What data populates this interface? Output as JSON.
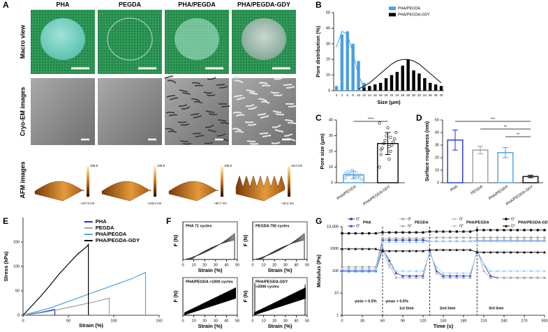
{
  "figure": {
    "panel_labels": [
      "A",
      "B",
      "C",
      "D",
      "E",
      "F",
      "G"
    ]
  },
  "images": {
    "columns": [
      "PHA",
      "PEGDA",
      "PHA/PEGDA",
      "PHA/PEGDA-GDY"
    ],
    "rows": [
      "Macro view",
      "Cryo-EM images",
      "AFM images"
    ],
    "afm_scales": [
      [
        "108.5 nm",
        "−137.6 nm"
      ],
      [
        "108.5 nm",
        "−133.0 nm"
      ],
      [
        "108.5 nm",
        "−90.7 nm"
      ],
      [
        "19.0 nm",
        "−15.4 nm"
      ]
    ]
  },
  "chart_data": [
    {
      "type": "bar",
      "ylabel": "Pore distribution (%)",
      "xlabel": "Size (μm)",
      "categories": [
        "2",
        "4",
        "6",
        "8",
        "10",
        "12",
        "14",
        "16",
        "18",
        "20",
        "22",
        "24",
        "26",
        "28",
        "30",
        "32",
        "34",
        "36",
        "38",
        "40"
      ],
      "ylim": [
        0,
        50
      ],
      "yticks": [
        0,
        10,
        20,
        30,
        40,
        50
      ],
      "legend": "upper right",
      "series": [
        {
          "name": "PHA/PEGDA",
          "color": "#4a9fe3",
          "values": [
            3,
            36,
            38,
            30,
            19,
            5,
            0,
            0,
            0,
            0,
            0,
            0,
            0,
            0,
            0,
            0,
            0,
            0,
            0,
            0
          ],
          "fit": [
            28,
            38,
            36,
            24,
            10,
            2,
            null,
            null,
            null,
            null,
            null,
            null,
            null,
            null,
            null,
            null,
            null,
            null,
            null,
            null
          ]
        },
        {
          "name": "PHA/PEGDA-GDY",
          "color": "#000000",
          "values": [
            0,
            0,
            0,
            0,
            0,
            2,
            3,
            4,
            5,
            8,
            10,
            12,
            16,
            20,
            13,
            11,
            8,
            5,
            4,
            3
          ],
          "fit": [
            null,
            null,
            null,
            null,
            1,
            3,
            5,
            8,
            11,
            14,
            17,
            19,
            20,
            20,
            19,
            17,
            14,
            11,
            8,
            5
          ]
        }
      ]
    },
    {
      "type": "column",
      "ylabel": "Pore size (μm)",
      "categories": [
        "PHA/PEGDA",
        "PHA/PEGDA-GDY"
      ],
      "colors": [
        "#4a9fe3",
        "#000000"
      ],
      "values": [
        5,
        25
      ],
      "errors": [
        2.5,
        7
      ],
      "points": [
        [
          3,
          4,
          5,
          6,
          7,
          4,
          5,
          3,
          6,
          5,
          8,
          2,
          4,
          6
        ],
        [
          10,
          15,
          18,
          20,
          22,
          24,
          25,
          26,
          27,
          28,
          30,
          32,
          35,
          38,
          23,
          21,
          29
        ]
      ],
      "ylim": [
        0,
        40
      ],
      "yticks": [
        0,
        10,
        20,
        30,
        40
      ],
      "annotations": [
        "****"
      ]
    },
    {
      "type": "column",
      "ylabel": "Surface roughness (nm)",
      "categories": [
        "PHA",
        "PEGDA",
        "PHA/PEGDA",
        "PHA/PEGDA-GDY"
      ],
      "colors": [
        "#1c2fd6",
        "#9a9a9a",
        "#4a9fe3",
        "#000000"
      ],
      "values": [
        34,
        26,
        24,
        5
      ],
      "errors": [
        8,
        3,
        4,
        1
      ],
      "ylim": [
        0,
        50
      ],
      "yticks": [
        0,
        10,
        20,
        30,
        40,
        50
      ],
      "annotations": [
        "***",
        "**",
        "**"
      ]
    },
    {
      "type": "line",
      "ylabel": "Stress (kPa)",
      "xlabel": "Strain (%)",
      "ylim": [
        0,
        200
      ],
      "yticks": [
        0,
        50,
        100,
        150
      ],
      "xlim": [
        0,
        150
      ],
      "xticks": [
        0,
        50,
        100,
        150
      ],
      "legend": "upper right",
      "series": [
        {
          "name": "PHA",
          "color": "#1c2fd6",
          "x": [
            0,
            10,
            20,
            30,
            35,
            35
          ],
          "values": [
            0,
            3,
            6,
            10,
            12,
            0
          ]
        },
        {
          "name": "PEGDA",
          "color": "#a0a0a0",
          "x": [
            0,
            20,
            40,
            60,
            80,
            95,
            95
          ],
          "values": [
            0,
            5,
            12,
            20,
            28,
            35,
            0
          ]
        },
        {
          "name": "PHA/PEGDA",
          "color": "#4fa7e6",
          "x": [
            0,
            30,
            60,
            90,
            120,
            135,
            135
          ],
          "values": [
            0,
            15,
            35,
            55,
            75,
            88,
            0
          ]
        },
        {
          "name": "PHA/PEGDA-GDY",
          "color": "#000000",
          "x": [
            0,
            10,
            20,
            30,
            40,
            50,
            60,
            70,
            72,
            72
          ],
          "values": [
            0,
            20,
            40,
            62,
            85,
            105,
            125,
            140,
            145,
            0
          ]
        }
      ]
    },
    {
      "type": "loops",
      "xlabel": "Strain (%)",
      "ylabel": "F (N)",
      "xlim": [
        0,
        50
      ],
      "xticks": [
        0,
        10,
        20,
        30,
        40,
        50
      ],
      "panels": [
        {
          "title": [
            "PHA  71 cycles"
          ],
          "color": "#1c2fd6"
        },
        {
          "title": [
            "PEGDA  792 cycles"
          ],
          "color": "#8a8a8a"
        },
        {
          "title": [
            "PHA/PEGDA >1000 cycles"
          ],
          "color": "#4fa7e6"
        },
        {
          "title": [
            "PHA/PEGDA-GDY",
            ">2000 cycles"
          ],
          "color": "#000000"
        }
      ]
    },
    {
      "type": "line",
      "log": true,
      "ylabel": "Modulus (Pa)",
      "xlabel": "Time (s)",
      "ylim": [
        1,
        10000
      ],
      "yticks": [
        1,
        10,
        100,
        1000,
        {
          "value": 10000,
          "label": "10,000"
        }
      ],
      "xlim": [
        0,
        300
      ],
      "xticks": [
        0,
        30,
        60,
        90,
        120,
        150,
        180,
        210,
        240,
        270,
        300
      ],
      "x": [
        0,
        10,
        20,
        30,
        40,
        50,
        60,
        70,
        80,
        90,
        100,
        110,
        120,
        130,
        140,
        150,
        160,
        170,
        180,
        190,
        200,
        210,
        220,
        230,
        240,
        250,
        260,
        270,
        280,
        290,
        300
      ],
      "groups": [
        "PHA",
        "PEGDA",
        "PHA/PEGDA",
        "PHA/PEGDA-GDY"
      ],
      "vlines": [
        60,
        130,
        200
      ],
      "annotations": [
        "γmin = 0.5%",
        "γmax = 0.5%",
        "1st time",
        "2nd time",
        "3rd time"
      ],
      "annotation_colors": [
        "#000000",
        "#d00000",
        "#000000",
        "#000000",
        "#000000"
      ],
      "series": [
        {
          "name": "G′",
          "marker": "square",
          "color": "#1c2fd6",
          "values": [
            100,
            100,
            100,
            100,
            100,
            100,
            2500,
            2500,
            2500,
            2500,
            2500,
            2500,
            2500,
            2200,
            2200,
            2200,
            2200,
            2200,
            2200,
            2200,
            2300,
            2300,
            2300,
            2300,
            2300,
            2300,
            2300,
            2300,
            2300,
            2300,
            2300
          ]
        },
        {
          "name": "G″",
          "marker": "triangle",
          "color": "#1c2fd6",
          "values": [
            100,
            100,
            100,
            100,
            100,
            100,
            1000,
            300,
            80,
            60,
            60,
            60,
            60,
            800,
            100,
            60,
            60,
            60,
            60,
            60,
            800,
            200,
            60,
            50,
            50,
            50,
            50,
            50,
            50,
            50,
            50
          ]
        },
        {
          "name": "G′",
          "marker": "square",
          "color": "#a8a8a8",
          "values": [
            150,
            150,
            150,
            150,
            150,
            150,
            3000,
            3000,
            3000,
            3000,
            3000,
            3000,
            3000,
            3200,
            3200,
            3200,
            3200,
            3200,
            3200,
            3200,
            3200,
            3200,
            3200,
            3200,
            3200,
            3200,
            3200,
            3200,
            3200,
            3200,
            3200
          ]
        },
        {
          "name": "G″",
          "marker": "triangle",
          "color": "#a8a8a8",
          "values": [
            120,
            120,
            120,
            120,
            120,
            120,
            1200,
            200,
            50,
            50,
            50,
            50,
            50,
            900,
            80,
            50,
            50,
            50,
            50,
            50,
            900,
            100,
            50,
            50,
            50,
            50,
            50,
            50,
            50,
            50,
            50
          ]
        },
        {
          "name": "G′",
          "marker": "square",
          "color": "#9fd4ee",
          "values": [
            120,
            120,
            120,
            120,
            120,
            120,
            2000,
            2000,
            2000,
            2000,
            2000,
            2000,
            2000,
            2200,
            2200,
            2200,
            2200,
            2200,
            2200,
            2200,
            2200,
            2200,
            2200,
            2200,
            2200,
            2200,
            2200,
            2200,
            2200,
            2200,
            2200
          ]
        },
        {
          "name": "G″",
          "marker": "triangle",
          "color": "#9fd4ee",
          "values": [
            90,
            90,
            90,
            90,
            90,
            90,
            800,
            150,
            100,
            100,
            100,
            100,
            100,
            600,
            150,
            80,
            80,
            80,
            80,
            80,
            700,
            200,
            100,
            100,
            100,
            100,
            100,
            100,
            100,
            100,
            100
          ]
        },
        {
          "name": "G′",
          "marker": "square",
          "color": "#000000",
          "values": [
            5000,
            5000,
            5000,
            5000,
            5000,
            5000,
            5500,
            5500,
            5500,
            5500,
            5500,
            5500,
            5500,
            6000,
            6000,
            6000,
            6000,
            6000,
            6000,
            6000,
            7000,
            7000,
            7000,
            7000,
            7000,
            7000,
            7000,
            7000,
            7000,
            7000,
            7000
          ]
        },
        {
          "name": "G″",
          "marker": "triangle",
          "color": "#000000",
          "values": [
            1000,
            1000,
            1000,
            1000,
            1000,
            1000,
            800,
            800,
            800,
            800,
            800,
            800,
            800,
            900,
            900,
            900,
            900,
            900,
            900,
            900,
            700,
            700,
            700,
            700,
            700,
            700,
            700,
            700,
            700,
            700,
            700
          ]
        }
      ]
    }
  ]
}
